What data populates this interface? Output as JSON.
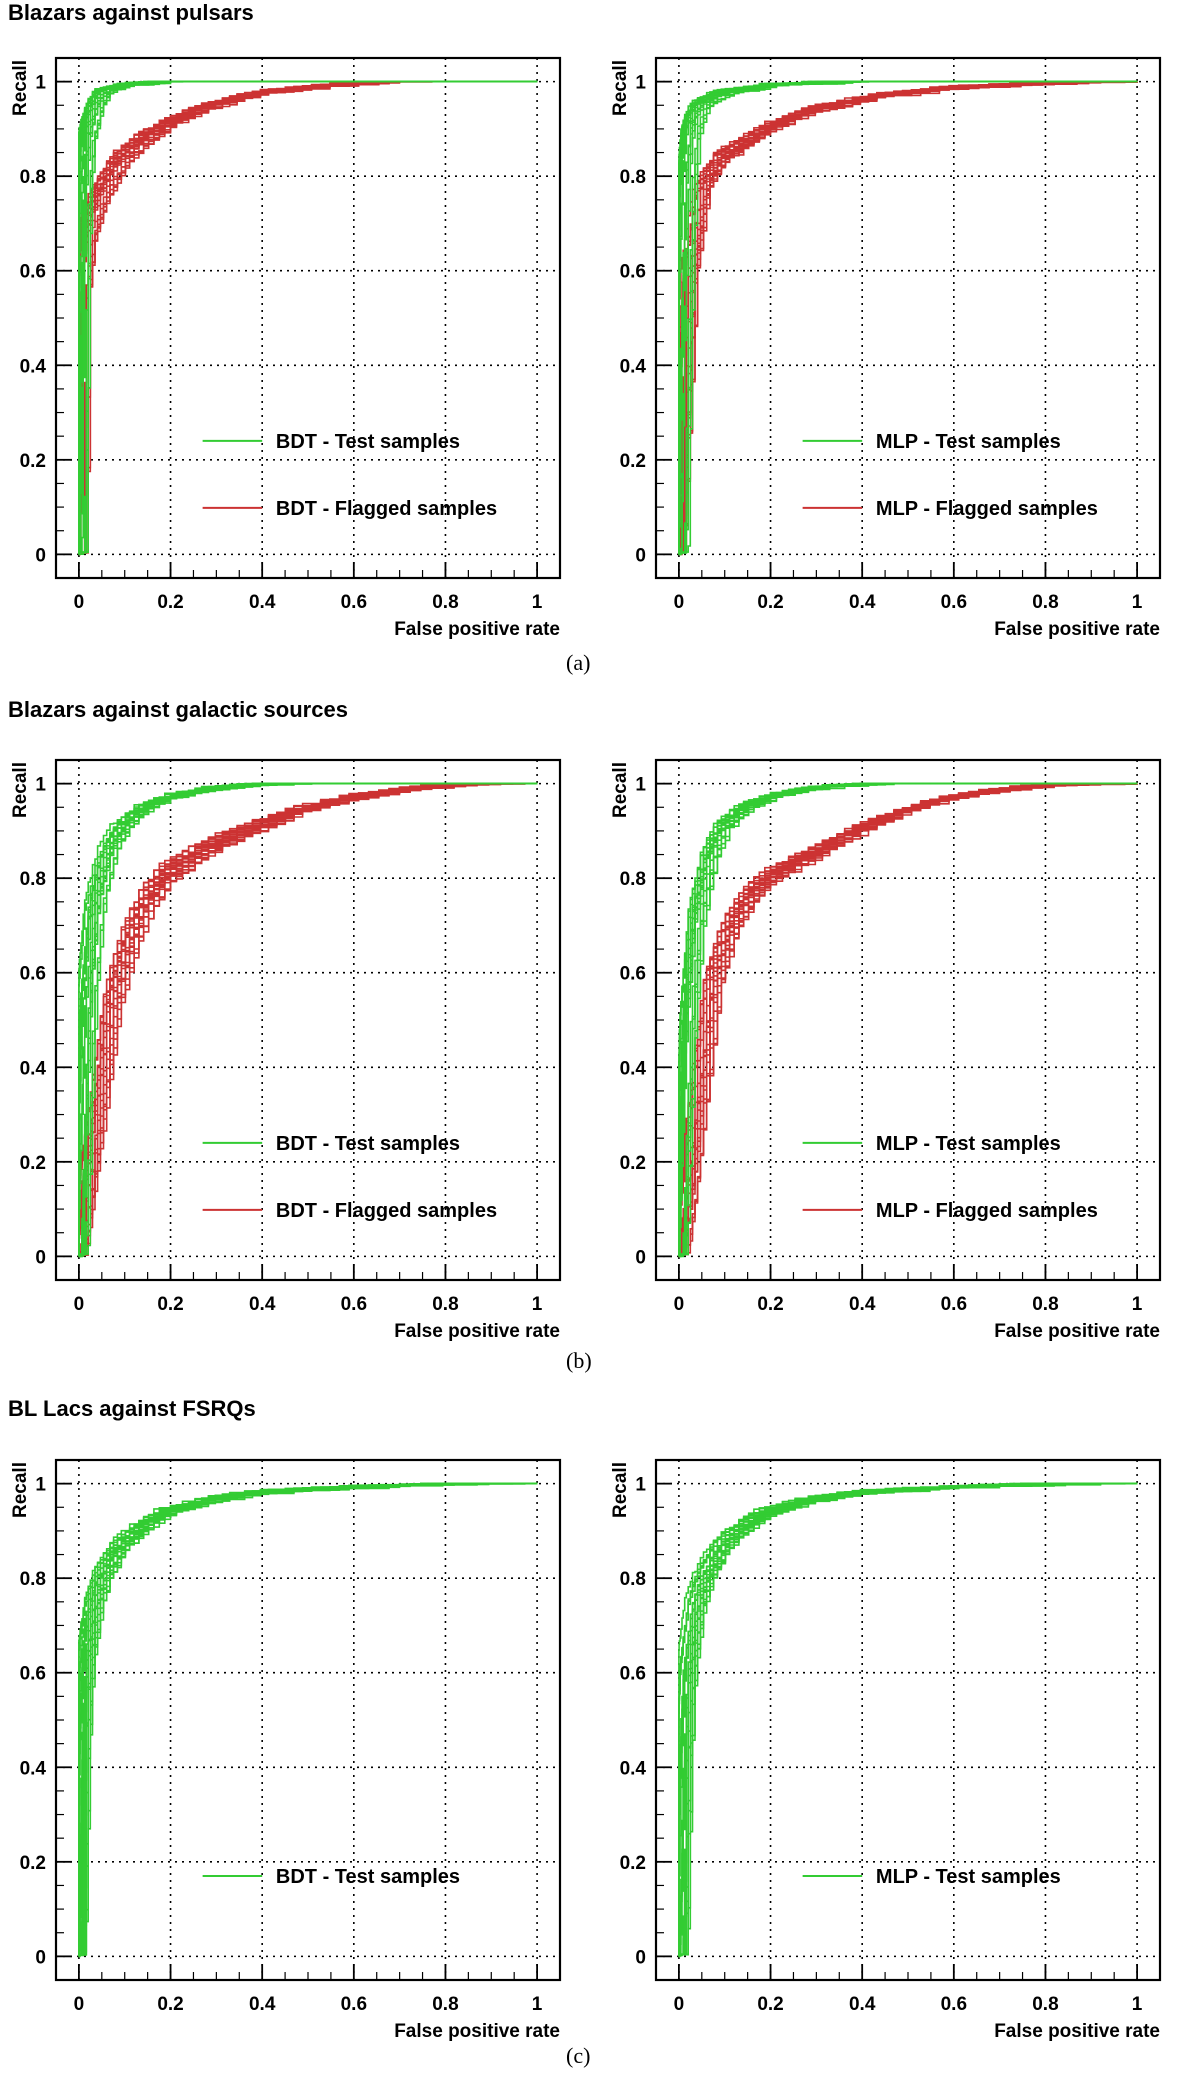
{
  "sections": [
    {
      "title": "Blazars against pulsars",
      "caption": "(a)"
    },
    {
      "title": "Blazars against galactic sources",
      "caption": "(b)"
    },
    {
      "title": "BL Lacs against FSRQs",
      "caption": "(c)"
    }
  ],
  "colors": {
    "test": "#33cc33",
    "flagged": "#cc3333"
  },
  "chart_data": [
    {
      "id": "a-bdt",
      "type": "line",
      "xlabel": "False positive rate",
      "ylabel": "Recall",
      "xlim": [
        -0.05,
        1.05
      ],
      "ylim": [
        -0.05,
        1.05
      ],
      "grid": true,
      "legend_position": "bottom-right",
      "series": [
        {
          "name": "BDT - Test samples",
          "color": "#33cc33",
          "curve": {
            "x": [
              0,
              0.005,
              0.01,
              0.02,
              0.04,
              0.06,
              0.1,
              0.2,
              0.4,
              1.0
            ],
            "y": [
              0,
              0.5,
              0.75,
              0.88,
              0.95,
              0.98,
              0.99,
              1.0,
              1.0,
              1.0
            ]
          }
        },
        {
          "name": "BDT - Flagged samples",
          "color": "#cc3333",
          "curve": {
            "x": [
              0,
              0.005,
              0.02,
              0.05,
              0.1,
              0.15,
              0.2,
              0.3,
              0.4,
              0.55,
              0.7,
              1.0
            ],
            "y": [
              0,
              0.55,
              0.68,
              0.76,
              0.84,
              0.88,
              0.91,
              0.95,
              0.975,
              0.99,
              1.0,
              1.0
            ]
          }
        }
      ]
    },
    {
      "id": "a-mlp",
      "type": "line",
      "xlabel": "False positive rate",
      "ylabel": "Recall",
      "xlim": [
        -0.05,
        1.05
      ],
      "ylim": [
        -0.05,
        1.05
      ],
      "grid": true,
      "legend_position": "bottom-right",
      "series": [
        {
          "name": "MLP - Test samples",
          "color": "#33cc33",
          "curve": {
            "x": [
              0,
              0.01,
              0.02,
              0.03,
              0.05,
              0.1,
              0.2,
              0.4,
              1.0
            ],
            "y": [
              0,
              0.5,
              0.8,
              0.9,
              0.95,
              0.975,
              0.99,
              1.0,
              1.0
            ]
          }
        },
        {
          "name": "MLP - Flagged samples",
          "color": "#cc3333",
          "curve": {
            "x": [
              0,
              0.01,
              0.03,
              0.06,
              0.1,
              0.15,
              0.2,
              0.3,
              0.45,
              0.6,
              0.8,
              1.0
            ],
            "y": [
              0,
              0.2,
              0.6,
              0.78,
              0.84,
              0.87,
              0.9,
              0.94,
              0.97,
              0.985,
              0.995,
              1.0
            ]
          }
        }
      ]
    },
    {
      "id": "b-bdt",
      "type": "line",
      "xlabel": "False positive rate",
      "ylabel": "Recall",
      "xlim": [
        -0.05,
        1.05
      ],
      "ylim": [
        -0.05,
        1.05
      ],
      "grid": true,
      "legend_position": "bottom-right",
      "series": [
        {
          "name": "BDT - Test samples",
          "color": "#33cc33",
          "curve": {
            "x": [
              0,
              0.01,
              0.02,
              0.04,
              0.07,
              0.1,
              0.15,
              0.2,
              0.3,
              0.45,
              1.0
            ],
            "y": [
              0,
              0.3,
              0.55,
              0.75,
              0.86,
              0.91,
              0.95,
              0.97,
              0.99,
              1.0,
              1.0
            ]
          }
        },
        {
          "name": "BDT - Flagged samples",
          "color": "#cc3333",
          "curve": {
            "x": [
              0,
              0.02,
              0.05,
              0.08,
              0.12,
              0.16,
              0.2,
              0.3,
              0.4,
              0.5,
              0.6,
              0.75,
              0.9,
              1.0
            ],
            "y": [
              0,
              0.15,
              0.35,
              0.55,
              0.68,
              0.76,
              0.81,
              0.87,
              0.91,
              0.945,
              0.97,
              0.99,
              1.0,
              1.0
            ]
          }
        }
      ]
    },
    {
      "id": "b-mlp",
      "type": "line",
      "xlabel": "False positive rate",
      "ylabel": "Recall",
      "xlim": [
        -0.05,
        1.05
      ],
      "ylim": [
        -0.05,
        1.05
      ],
      "grid": true,
      "legend_position": "bottom-right",
      "series": [
        {
          "name": "MLP - Test samples",
          "color": "#33cc33",
          "curve": {
            "x": [
              0,
              0.01,
              0.02,
              0.04,
              0.07,
              0.1,
              0.15,
              0.2,
              0.3,
              0.45,
              1.0
            ],
            "y": [
              0,
              0.25,
              0.5,
              0.72,
              0.85,
              0.91,
              0.95,
              0.97,
              0.99,
              1.0,
              1.0
            ]
          }
        },
        {
          "name": "MLP - Flagged samples",
          "color": "#cc3333",
          "curve": {
            "x": [
              0,
              0.02,
              0.05,
              0.08,
              0.12,
              0.16,
              0.2,
              0.3,
              0.4,
              0.5,
              0.6,
              0.75,
              0.9,
              1.0
            ],
            "y": [
              0,
              0.12,
              0.35,
              0.58,
              0.7,
              0.76,
              0.8,
              0.85,
              0.9,
              0.94,
              0.97,
              0.99,
              1.0,
              1.0
            ]
          }
        }
      ]
    },
    {
      "id": "c-bdt",
      "type": "line",
      "xlabel": "False positive rate",
      "ylabel": "Recall",
      "xlim": [
        -0.05,
        1.05
      ],
      "ylim": [
        -0.05,
        1.05
      ],
      "grid": true,
      "legend_position": "bottom-right",
      "series": [
        {
          "name": "BDT - Test samples",
          "color": "#33cc33",
          "curve": {
            "x": [
              0,
              0.005,
              0.01,
              0.02,
              0.04,
              0.06,
              0.1,
              0.15,
              0.2,
              0.3,
              0.4,
              0.6,
              0.8,
              1.0
            ],
            "y": [
              0,
              0.2,
              0.45,
              0.63,
              0.75,
              0.81,
              0.87,
              0.91,
              0.94,
              0.965,
              0.98,
              0.99,
              0.997,
              1.0
            ]
          }
        }
      ]
    },
    {
      "id": "c-mlp",
      "type": "line",
      "xlabel": "False positive rate",
      "ylabel": "Recall",
      "xlim": [
        -0.05,
        1.05
      ],
      "ylim": [
        -0.05,
        1.05
      ],
      "grid": true,
      "legend_position": "bottom-right",
      "series": [
        {
          "name": "MLP - Test samples",
          "color": "#33cc33",
          "curve": {
            "x": [
              0,
              0.005,
              0.01,
              0.02,
              0.04,
              0.06,
              0.1,
              0.15,
              0.2,
              0.3,
              0.4,
              0.6,
              0.8,
              1.0
            ],
            "y": [
              0,
              0.18,
              0.4,
              0.6,
              0.74,
              0.8,
              0.87,
              0.91,
              0.94,
              0.965,
              0.98,
              0.99,
              0.997,
              1.0
            ]
          }
        }
      ]
    }
  ]
}
